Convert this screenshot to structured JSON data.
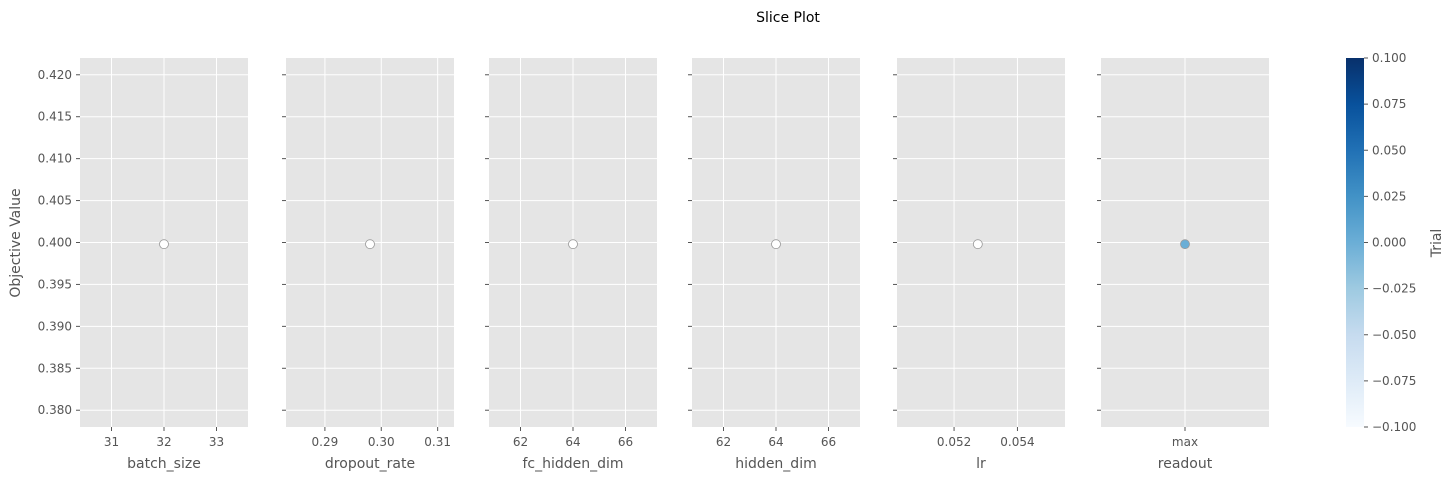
{
  "chart_data": {
    "type": "scatter",
    "title": "Slice Plot",
    "ylabel": "Objective Value",
    "ylim": [
      0.378,
      0.422
    ],
    "yticks": [
      "0.380",
      "0.385",
      "0.390",
      "0.395",
      "0.400",
      "0.405",
      "0.410",
      "0.415",
      "0.420"
    ],
    "ytick_values": [
      0.38,
      0.385,
      0.39,
      0.395,
      0.4,
      0.405,
      0.41,
      0.415,
      0.42
    ],
    "panels": [
      {
        "xlabel": "batch_size",
        "xlim": [
          30.4,
          33.6
        ],
        "xtick_values": [
          31,
          32,
          33
        ],
        "xticks": [
          "31",
          "32",
          "33"
        ],
        "points": [
          {
            "x": 32,
            "y": 0.3998
          }
        ],
        "point_color": "#ffffff"
      },
      {
        "xlabel": "dropout_rate",
        "xlim": [
          0.2831,
          0.3129
        ],
        "xtick_values": [
          0.29,
          0.3,
          0.31
        ],
        "xticks": [
          "0.29",
          "0.30",
          "0.31"
        ],
        "points": [
          {
            "x": 0.298,
            "y": 0.3998
          }
        ],
        "point_color": "#ffffff"
      },
      {
        "xlabel": "fc_hidden_dim",
        "xlim": [
          60.8,
          67.2
        ],
        "xtick_values": [
          62,
          64,
          66
        ],
        "xticks": [
          "62",
          "64",
          "66"
        ],
        "points": [
          {
            "x": 64,
            "y": 0.3998
          }
        ],
        "point_color": "#ffffff"
      },
      {
        "xlabel": "hidden_dim",
        "xlim": [
          60.8,
          67.2
        ],
        "xtick_values": [
          62,
          64,
          66
        ],
        "xticks": [
          "62",
          "64",
          "66"
        ],
        "points": [
          {
            "x": 64,
            "y": 0.3998
          }
        ],
        "point_color": "#ffffff"
      },
      {
        "xlabel": "lr",
        "xlim": [
          0.0502,
          0.0555
        ],
        "xtick_values": [
          0.052,
          0.054
        ],
        "xticks": [
          "0.052",
          "0.054"
        ],
        "points": [
          {
            "x": 0.05275,
            "y": 0.3998
          }
        ],
        "point_color": "#ffffff"
      },
      {
        "xlabel": "readout",
        "xlim": [
          -1,
          1
        ],
        "xtick_values": [
          0
        ],
        "xticks": [
          "max"
        ],
        "points": [
          {
            "x": 0,
            "y": 0.3998
          }
        ],
        "point_color": "#6aaed6"
      }
    ],
    "colorbar": {
      "label": "Trial",
      "range": [
        -0.1,
        0.1
      ],
      "tick_values": [
        -0.1,
        -0.075,
        -0.05,
        -0.025,
        0,
        0.025,
        0.05,
        0.075,
        0.1
      ],
      "ticks": [
        "−0.100",
        "−0.075",
        "−0.050",
        "−0.025",
        "0.000",
        "0.025",
        "0.050",
        "0.075",
        "0.100"
      ],
      "colors": [
        "#f7fbff",
        "#deebf7",
        "#c6dbef",
        "#9ecae1",
        "#6baed6",
        "#4292c6",
        "#2171b5",
        "#08519c",
        "#08306b"
      ]
    },
    "grid": true,
    "style": {
      "panel_background": "#e5e5e5",
      "grid_color": "#ffffff",
      "tick_color": "#555555",
      "label_color": "#555555",
      "title_color": "#000000",
      "marker_edge": "#999999"
    }
  }
}
